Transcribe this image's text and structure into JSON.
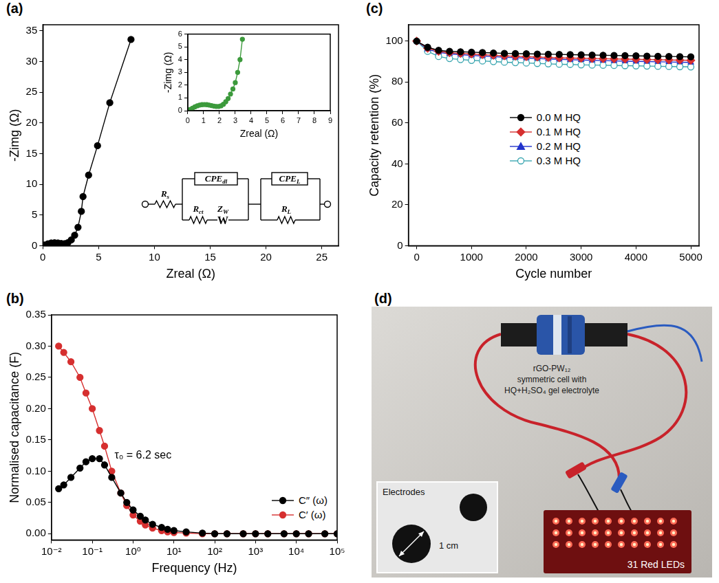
{
  "chart_data": [
    {
      "panel_label": "(a)",
      "type": "scatter",
      "marker": "circle",
      "line_style": "solid",
      "color": "#000000",
      "x_label": "Zreal (Ω)",
      "y_label": "-Zimg (Ω)",
      "x": [
        0.15,
        0.45,
        0.75,
        1.05,
        1.35,
        1.65,
        1.95,
        2.25,
        2.55,
        2.85,
        3.15,
        3.45,
        3.6,
        4.1,
        4.9,
        6.0,
        7.9
      ],
      "values": [
        0.1,
        0.3,
        0.44,
        0.48,
        0.44,
        0.36,
        0.33,
        0.5,
        0.95,
        1.7,
        3.0,
        5.6,
        8.0,
        11.5,
        16.3,
        23.3,
        33.6
      ],
      "xlim": [
        0,
        26.5
      ],
      "ylim": [
        0,
        36
      ],
      "xticks": [
        0,
        5,
        10,
        15,
        20,
        25
      ],
      "yticks": [
        0,
        5,
        10,
        15,
        20,
        25,
        30,
        35
      ],
      "grid": false,
      "inset": {
        "type": "scatter",
        "marker": "circle",
        "line_style": "solid",
        "color": "#3c9a3c",
        "x_label": "Zreal (Ω)",
        "y_label": "-Zimg (Ω)",
        "x": [
          0.05,
          0.15,
          0.3,
          0.45,
          0.6,
          0.75,
          0.9,
          1.05,
          1.2,
          1.35,
          1.5,
          1.65,
          1.8,
          1.95,
          2.1,
          2.25,
          2.4,
          2.55,
          2.7,
          2.85,
          3.0,
          3.15,
          3.3,
          3.45
        ],
        "values": [
          0.0,
          0.1,
          0.2,
          0.3,
          0.38,
          0.44,
          0.47,
          0.48,
          0.47,
          0.44,
          0.4,
          0.36,
          0.33,
          0.33,
          0.38,
          0.5,
          0.7,
          0.95,
          1.3,
          1.7,
          2.2,
          3.0,
          4.0,
          5.6
        ],
        "xlim": [
          0,
          9
        ],
        "ylim": [
          0,
          6
        ],
        "xticks": [
          0,
          1,
          2,
          3,
          4,
          5,
          6,
          7,
          8,
          9
        ],
        "yticks": [
          0,
          1,
          2,
          3,
          4,
          5,
          6
        ],
        "grid": false
      }
    },
    {
      "panel_label": "(b)",
      "type": "line",
      "log": "x",
      "x_label": "Frequency (Hz)",
      "y_label": "Normalised capacitance (F)",
      "x": [
        0.015,
        0.02,
        0.03,
        0.05,
        0.07,
        0.1,
        0.15,
        0.2,
        0.3,
        0.5,
        0.7,
        1,
        1.5,
        2,
        3,
        5,
        7,
        10,
        20,
        50,
        100,
        200,
        500,
        1000,
        2000,
        5000,
        10000,
        20000,
        50000,
        100000
      ],
      "series": [
        {
          "name": "C″ (ω)",
          "color": "#000000",
          "marker": "circle",
          "values": [
            0.072,
            0.078,
            0.09,
            0.105,
            0.115,
            0.12,
            0.12,
            0.11,
            0.09,
            0.065,
            0.05,
            0.038,
            0.028,
            0.022,
            0.015,
            0.01,
            0.007,
            0.005,
            0.003,
            0.001,
            0,
            0,
            0,
            0,
            0,
            0,
            0,
            0,
            0,
            0
          ]
        },
        {
          "name": "C′ (ω)",
          "color": "#d62f2f",
          "marker": "circle",
          "values": [
            0.3,
            0.29,
            0.275,
            0.25,
            0.225,
            0.2,
            0.165,
            0.14,
            0.1,
            0.065,
            0.045,
            0.03,
            0.02,
            0.014,
            0.009,
            0.005,
            0.003,
            0.002,
            0.001,
            0,
            0,
            0,
            0,
            0,
            0,
            0,
            0,
            0,
            0,
            0
          ]
        }
      ],
      "xlim": [
        0.01,
        100000
      ],
      "ylim": [
        -0.01,
        0.35
      ],
      "xticks": [
        {
          "value": 0.01,
          "label": "10⁻²"
        },
        {
          "value": 0.1,
          "label": "10⁻¹"
        },
        {
          "value": 1,
          "label": "10⁰"
        },
        {
          "value": 10,
          "label": "10¹"
        },
        {
          "value": 100,
          "label": "10²"
        },
        {
          "value": 1000,
          "label": "10³"
        },
        {
          "value": 10000,
          "label": "10⁴"
        },
        {
          "value": 100000,
          "label": "10⁵"
        }
      ],
      "yticks": [
        {
          "value": 0,
          "label": "0.00"
        },
        0.05,
        {
          "value": 0.1,
          "label": "0.10"
        },
        0.15,
        {
          "value": 0.2,
          "label": "0.20"
        },
        0.25,
        {
          "value": 0.3,
          "label": "0.30"
        },
        0.35
      ],
      "grid": false,
      "legend": "lower right",
      "annotations": [
        {
          "text": "τ₀ = 6.2 sec",
          "x": 0.35,
          "y": 0.125
        }
      ]
    },
    {
      "panel_label": "(c)",
      "type": "line",
      "x_label": "Cycle number",
      "y_label": "Capacity retention (%)",
      "x": [
        0,
        200,
        400,
        600,
        800,
        1000,
        1200,
        1400,
        1600,
        1800,
        2000,
        2200,
        2400,
        2600,
        2800,
        3000,
        3200,
        3400,
        3600,
        3800,
        4000,
        4200,
        4400,
        4600,
        4800,
        5000
      ],
      "series": [
        {
          "name": "0.0 M HQ",
          "color": "#000000",
          "marker": "circle",
          "values": [
            100,
            97,
            95.5,
            95,
            94.8,
            94.6,
            94.4,
            94.2,
            94,
            93.9,
            93.8,
            93.7,
            93.6,
            93.5,
            93.4,
            93.3,
            93.2,
            93.1,
            93,
            92.9,
            92.8,
            92.7,
            92.6,
            92.5,
            92.4,
            92.3
          ]
        },
        {
          "name": "0.1 M HQ",
          "color": "#d62f2f",
          "marker": "diamond",
          "values": [
            100,
            96.5,
            95,
            94.3,
            94,
            93.7,
            93.4,
            93.1,
            92.8,
            92.6,
            92.4,
            92.2,
            92,
            91.8,
            91.7,
            91.6,
            91.5,
            91.4,
            91.3,
            91.2,
            91.1,
            91,
            90.9,
            90.8,
            90.7,
            90.6
          ]
        },
        {
          "name": "0.2 M HQ",
          "color": "#2233cc",
          "marker": "triangle",
          "values": [
            100,
            96,
            94.5,
            93.8,
            93.4,
            93,
            92.7,
            92.4,
            92.1,
            91.9,
            91.7,
            91.5,
            91.3,
            91.1,
            90.9,
            90.8,
            90.6,
            90.5,
            90.3,
            90.2,
            90.1,
            90,
            89.9,
            89.8,
            89.7,
            89.6
          ]
        },
        {
          "name": "0.3 M HQ",
          "color": "#3aa6b0",
          "marker": "circle_open",
          "values": [
            100,
            95,
            92.5,
            91.5,
            91,
            90.6,
            90.3,
            90,
            89.7,
            89.5,
            89.3,
            89.1,
            88.9,
            88.7,
            88.6,
            88.4,
            88.3,
            88.2,
            88.1,
            88,
            87.9,
            87.8,
            87.7,
            87.6,
            87.5,
            87.4
          ]
        }
      ],
      "xlim": [
        -150,
        5150
      ],
      "ylim": [
        0,
        108
      ],
      "xticks": [
        0,
        1000,
        2000,
        3000,
        4000,
        5000
      ],
      "yticks": [
        0,
        20,
        40,
        60,
        80,
        100
      ],
      "grid": false,
      "legend": "center"
    }
  ],
  "circuit": {
    "labels": [
      {
        "main": "R",
        "sub": "s"
      },
      {
        "main": "CPE",
        "sub": "dl"
      },
      {
        "main": "R",
        "sub": "ct"
      },
      {
        "main": "Z",
        "sub": "W"
      },
      {
        "main": "CPE",
        "sub": "L"
      },
      {
        "main": "R",
        "sub": "L"
      }
    ],
    "warburg_symbol": "W"
  },
  "photo": {
    "panel_label": "(d)",
    "cell_label": [
      "rGO-PW₁₂",
      "symmetric cell with",
      "HQ+H₂SO₄ gel electrolyte"
    ],
    "inset_title": "Electrodes",
    "scale_bar": "1 cm",
    "led_label": "31 Red LEDs"
  }
}
